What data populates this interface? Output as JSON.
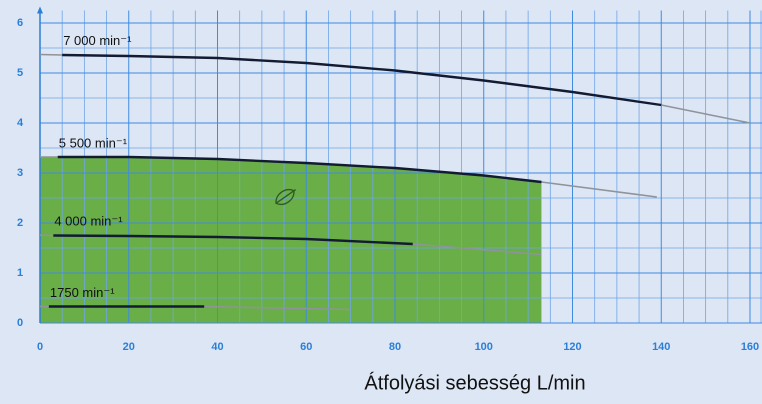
{
  "chart_data": {
    "type": "line",
    "xlabel": "Átfolyási sebesség L/min",
    "xlim": [
      0,
      160
    ],
    "xticks": [
      0,
      20,
      40,
      60,
      80,
      100,
      120,
      140,
      160
    ],
    "ylim": [
      0,
      6.25
    ],
    "yticks": [
      0,
      1,
      2,
      3,
      4,
      5,
      6
    ],
    "grid": true,
    "region": {
      "series": 1,
      "xlim": [
        0,
        113
      ],
      "color": "#6aae48"
    },
    "extension_color": "#8f939a",
    "series": [
      {
        "name": "7 000 min⁻¹",
        "color": "#131b33",
        "operating_range": [
          5,
          140
        ],
        "x": [
          0,
          5,
          20,
          40,
          60,
          80,
          100,
          120,
          140,
          160
        ],
        "values": [
          5.37,
          5.36,
          5.34,
          5.3,
          5.2,
          5.05,
          4.85,
          4.62,
          4.36,
          4.0
        ]
      },
      {
        "name": "5 500 min⁻¹",
        "color": "#131b33",
        "operating_range": [
          4,
          113
        ],
        "x": [
          0,
          4,
          20,
          40,
          60,
          80,
          100,
          113,
          139
        ],
        "values": [
          3.32,
          3.32,
          3.32,
          3.28,
          3.2,
          3.1,
          2.95,
          2.82,
          2.52
        ]
      },
      {
        "name": "4 000 min⁻¹",
        "color": "#131b33",
        "operating_range": [
          3,
          84
        ],
        "x": [
          0,
          3,
          20,
          40,
          60,
          84,
          113
        ],
        "values": [
          1.76,
          1.75,
          1.74,
          1.72,
          1.68,
          1.58,
          1.37
        ]
      },
      {
        "name": "1750 min⁻¹",
        "color": "#131b33",
        "operating_range": [
          2,
          37
        ],
        "x": [
          0,
          2,
          37,
          70
        ],
        "values": [
          0.33,
          0.33,
          0.33,
          0.27
        ]
      }
    ]
  }
}
